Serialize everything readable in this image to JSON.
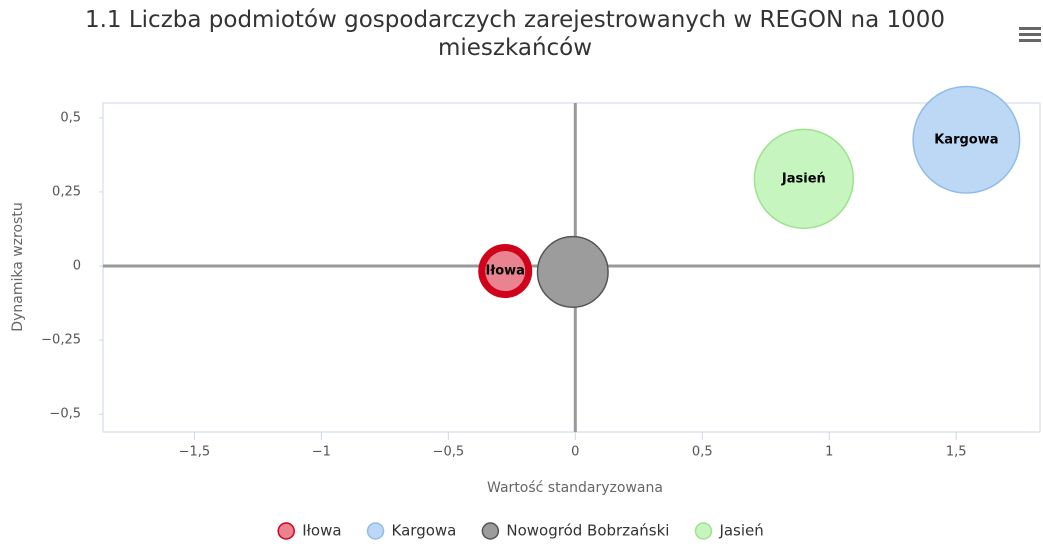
{
  "chart_data": {
    "type": "bubble",
    "title": "1.1 Liczba podmiotów gospodarczych zarejestrowanych w REGON na 1000 mieszkańców",
    "x_label": "Wartość standaryzowana",
    "y_label": "Dynamika wzrostu",
    "xlim": [
      -1.86,
      1.83
    ],
    "ylim": [
      -0.56,
      0.55
    ],
    "xticks": [
      {
        "value": -1.5,
        "label": "−1,5"
      },
      {
        "value": -1,
        "label": "−1"
      },
      {
        "value": -0.5,
        "label": "−0,5"
      },
      0,
      {
        "value": 0.5,
        "label": "0,5"
      },
      1,
      {
        "value": 1.5,
        "label": "1,5"
      }
    ],
    "yticks": [
      {
        "value": -0.5,
        "label": "−0,5"
      },
      {
        "value": -0.25,
        "label": "−0,25"
      },
      0,
      {
        "value": 0.25,
        "label": "0,25"
      },
      {
        "value": 0.5,
        "label": "0,5"
      }
    ],
    "legend": "bottom",
    "series": [
      {
        "name": "Iłowa",
        "color": "#e8838f",
        "stroke": "#d0021b",
        "x": [
          -0.276
        ],
        "values": [
          -0.017
        ],
        "sizes": [
          27.5
        ],
        "data_labels": true
      },
      {
        "name": "Kargowa",
        "color": "#bcd8f5",
        "stroke": "#90bce8",
        "x": [
          1.54
        ],
        "values": [
          0.426
        ],
        "sizes": [
          110
        ],
        "data_labels": true
      },
      {
        "name": "Nowogród Bobrzański",
        "color": "#9c9c9c",
        "stroke": "#555555",
        "x": [
          -0.01
        ],
        "values": [
          -0.02
        ],
        "sizes": [
          49
        ],
        "data_labels": false
      },
      {
        "name": "Jasień",
        "color": "#c6f5bf",
        "stroke": "#9ee290",
        "x": [
          0.9
        ],
        "values": [
          0.294
        ],
        "sizes": [
          95
        ],
        "data_labels": true
      }
    ]
  }
}
